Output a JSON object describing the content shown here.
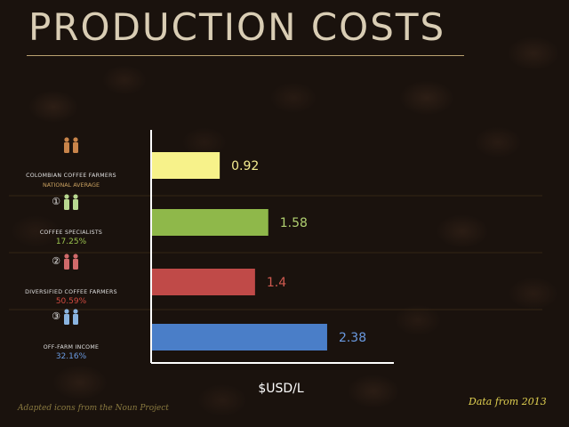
{
  "title": "Production Costs",
  "credit": "Adapted icons from the Noun Project",
  "source": "Data from 2013",
  "chart_data": {
    "type": "bar",
    "orientation": "horizontal",
    "xlabel": "$USD/L",
    "categories": [
      {
        "marker": "",
        "line1": "Colombian coffee farmers",
        "line2": "national average",
        "color": "#f7f28a",
        "label_color": "#e0e0e0",
        "sub_color": "#c8a060",
        "icon_color": "#c8844a"
      },
      {
        "marker": "①",
        "line1": "Coffee specialists",
        "line2": "17.25%",
        "color": "#8fb84a",
        "label_color": "#e0e0e0",
        "sub_color": "#9ac24e",
        "icon_color": "#b8d890"
      },
      {
        "marker": "②",
        "line1": "Diversified coffee farmers",
        "line2": "50.59%",
        "color": "#c04a48",
        "label_color": "#e0e0e0",
        "sub_color": "#d04a40",
        "icon_color": "#d06a6a"
      },
      {
        "marker": "③",
        "line1": "Off-farm income",
        "line2": "32.16%",
        "color": "#4a7ec8",
        "label_color": "#e0e0e0",
        "sub_color": "#6a9ae0",
        "icon_color": "#8ab4e0"
      }
    ],
    "values": [
      0.92,
      1.58,
      1.4,
      2.38
    ],
    "value_labels": [
      "0.92",
      "1.58",
      "1.4",
      "2.38"
    ],
    "value_label_colors": [
      "#f4ec90",
      "#b0d070",
      "#d05a50",
      "#6a9ae0"
    ],
    "xlim": [
      0,
      2.9
    ],
    "grid": false
  }
}
